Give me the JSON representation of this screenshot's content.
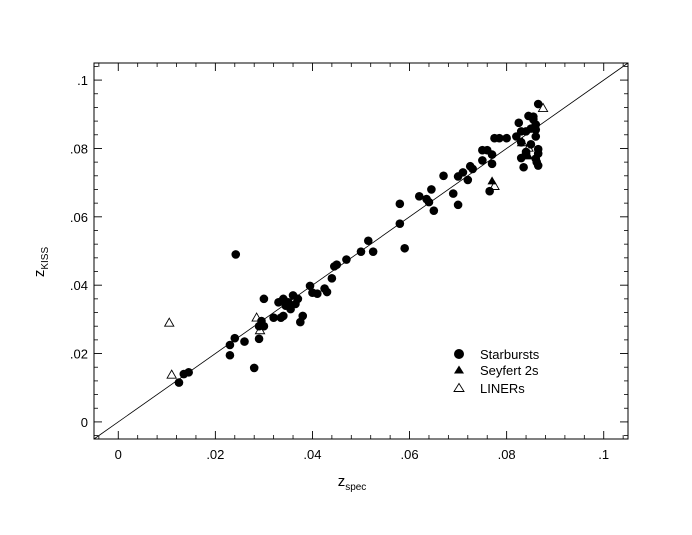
{
  "chart_data": {
    "type": "scatter",
    "title": "",
    "xlabel": {
      "main": "z",
      "sub": "spec"
    },
    "ylabel": {
      "main": "z",
      "sub": "KISS"
    },
    "xlim": [
      -0.005,
      0.105
    ],
    "ylim": [
      -0.005,
      0.105
    ],
    "x_ticks": [
      0,
      0.02,
      0.04,
      0.06,
      0.08,
      0.1
    ],
    "x_tick_labels": [
      "0",
      ".02",
      ".04",
      ".06",
      ".08",
      ".1"
    ],
    "y_ticks": [
      0,
      0.02,
      0.04,
      0.06,
      0.08,
      0.1
    ],
    "y_tick_labels": [
      "0",
      ".02",
      ".04",
      ".06",
      ".08",
      ".1"
    ],
    "grid": false,
    "reference_line": {
      "type": "one-to-one",
      "from": [
        -0.005,
        -0.005
      ],
      "to": [
        0.105,
        0.105
      ]
    },
    "legend": {
      "position": "lower-right"
    },
    "series": [
      {
        "name": "Starbursts",
        "marker": "filled-circle",
        "points": [
          [
            0.0125,
            0.0115
          ],
          [
            0.0135,
            0.014
          ],
          [
            0.0145,
            0.0145
          ],
          [
            0.023,
            0.0195
          ],
          [
            0.023,
            0.0225
          ],
          [
            0.024,
            0.0245
          ],
          [
            0.0242,
            0.049
          ],
          [
            0.026,
            0.0235
          ],
          [
            0.028,
            0.0158
          ],
          [
            0.029,
            0.0243
          ],
          [
            0.029,
            0.028
          ],
          [
            0.0295,
            0.0295
          ],
          [
            0.03,
            0.028
          ],
          [
            0.03,
            0.036
          ],
          [
            0.032,
            0.0305
          ],
          [
            0.033,
            0.035
          ],
          [
            0.0335,
            0.0305
          ],
          [
            0.034,
            0.031
          ],
          [
            0.034,
            0.036
          ],
          [
            0.0345,
            0.034
          ],
          [
            0.035,
            0.035
          ],
          [
            0.0355,
            0.033
          ],
          [
            0.036,
            0.037
          ],
          [
            0.0365,
            0.0345
          ],
          [
            0.037,
            0.036
          ],
          [
            0.0375,
            0.0292
          ],
          [
            0.038,
            0.031
          ],
          [
            0.0395,
            0.0398
          ],
          [
            0.04,
            0.0378
          ],
          [
            0.041,
            0.0375
          ],
          [
            0.0425,
            0.039
          ],
          [
            0.043,
            0.038
          ],
          [
            0.044,
            0.042
          ],
          [
            0.0445,
            0.0455
          ],
          [
            0.045,
            0.046
          ],
          [
            0.047,
            0.0475
          ],
          [
            0.05,
            0.0498
          ],
          [
            0.0515,
            0.053
          ],
          [
            0.0525,
            0.0498
          ],
          [
            0.058,
            0.058
          ],
          [
            0.058,
            0.0638
          ],
          [
            0.059,
            0.0508
          ],
          [
            0.062,
            0.066
          ],
          [
            0.0635,
            0.0652
          ],
          [
            0.064,
            0.0643
          ],
          [
            0.0645,
            0.068
          ],
          [
            0.065,
            0.0618
          ],
          [
            0.067,
            0.072
          ],
          [
            0.069,
            0.0668
          ],
          [
            0.07,
            0.0635
          ],
          [
            0.07,
            0.0718
          ],
          [
            0.071,
            0.073
          ],
          [
            0.072,
            0.0708
          ],
          [
            0.0725,
            0.0748
          ],
          [
            0.073,
            0.074
          ],
          [
            0.075,
            0.0765
          ],
          [
            0.075,
            0.0795
          ],
          [
            0.076,
            0.0795
          ],
          [
            0.0765,
            0.0675
          ],
          [
            0.077,
            0.0782
          ],
          [
            0.077,
            0.0755
          ],
          [
            0.0775,
            0.083
          ],
          [
            0.0785,
            0.083
          ],
          [
            0.08,
            0.083
          ],
          [
            0.082,
            0.0835
          ],
          [
            0.0825,
            0.0875
          ],
          [
            0.083,
            0.085
          ],
          [
            0.083,
            0.0818
          ],
          [
            0.083,
            0.0772
          ],
          [
            0.0835,
            0.0745
          ],
          [
            0.084,
            0.079
          ],
          [
            0.084,
            0.085
          ],
          [
            0.0845,
            0.0895
          ],
          [
            0.085,
            0.0812
          ],
          [
            0.085,
            0.0858
          ],
          [
            0.0855,
            0.0885
          ],
          [
            0.0855,
            0.0893
          ],
          [
            0.086,
            0.0835
          ],
          [
            0.086,
            0.0855
          ],
          [
            0.086,
            0.087
          ],
          [
            0.086,
            0.077
          ],
          [
            0.0862,
            0.076
          ],
          [
            0.0865,
            0.0798
          ],
          [
            0.0865,
            0.0785
          ],
          [
            0.0865,
            0.075
          ],
          [
            0.0865,
            0.093
          ],
          [
            0.084,
            0.0785
          ]
        ]
      },
      {
        "name": "Seyfert 2s",
        "marker": "filled-triangle",
        "points": [
          [
            0.077,
            0.0705
          ],
          [
            0.0845,
            0.0778
          ]
        ]
      },
      {
        "name": "LINERs",
        "marker": "open-triangle",
        "points": [
          [
            0.0105,
            0.029
          ],
          [
            0.011,
            0.0138
          ],
          [
            0.0285,
            0.0305
          ],
          [
            0.0292,
            0.0268
          ],
          [
            0.0775,
            0.069
          ],
          [
            0.0832,
            0.0818
          ],
          [
            0.0875,
            0.0918
          ],
          [
            0.0845,
            0.0802
          ]
        ]
      }
    ]
  }
}
